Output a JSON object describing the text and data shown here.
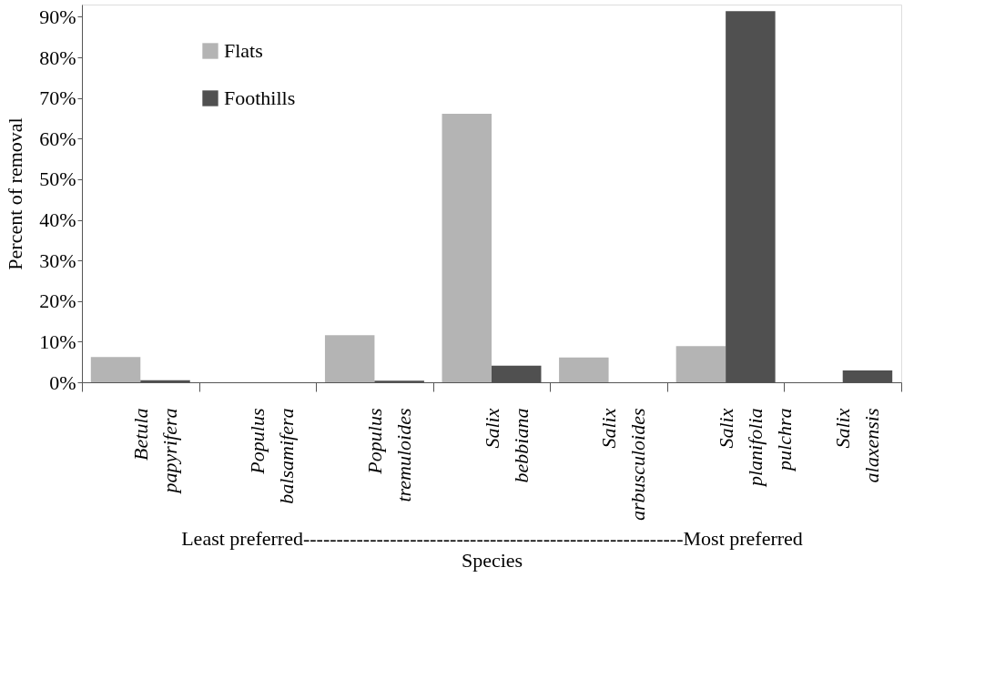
{
  "chart_data": {
    "type": "bar",
    "categories": [
      "Betula papyrifera",
      "Populus balsamifera",
      "Populus tremuloides",
      "Salix bebbiana",
      "Salix arbusculoides",
      "Salix planifolia pulchra",
      "Salix alaxensis"
    ],
    "series": [
      {
        "name": "Flats",
        "color": "#b4b4b4",
        "values": [
          6.2,
          0,
          11.6,
          66.1,
          6.1,
          8.9,
          0
        ]
      },
      {
        "name": "Foothills",
        "color": "#505050",
        "values": [
          0.5,
          0,
          0.4,
          4.1,
          0,
          91.4,
          2.9
        ]
      }
    ],
    "ylabel": "Percent of removal",
    "xlabel": "Species",
    "annotations": [
      "Least preferred---------------------------------------------------------Most preferred"
    ],
    "ylim": [
      0,
      93
    ],
    "yticks": [
      {
        "value": 0,
        "label": "0%"
      },
      {
        "value": 10,
        "label": "10%"
      },
      {
        "value": 20,
        "label": "20%"
      },
      {
        "value": 30,
        "label": "30%"
      },
      {
        "value": 40,
        "label": "40%"
      },
      {
        "value": 50,
        "label": "50%"
      },
      {
        "value": 60,
        "label": "60%"
      },
      {
        "value": 70,
        "label": "70%"
      },
      {
        "value": 80,
        "label": "80%"
      },
      {
        "value": 90,
        "label": "90%"
      }
    ],
    "legend": "top left",
    "grid": false
  }
}
